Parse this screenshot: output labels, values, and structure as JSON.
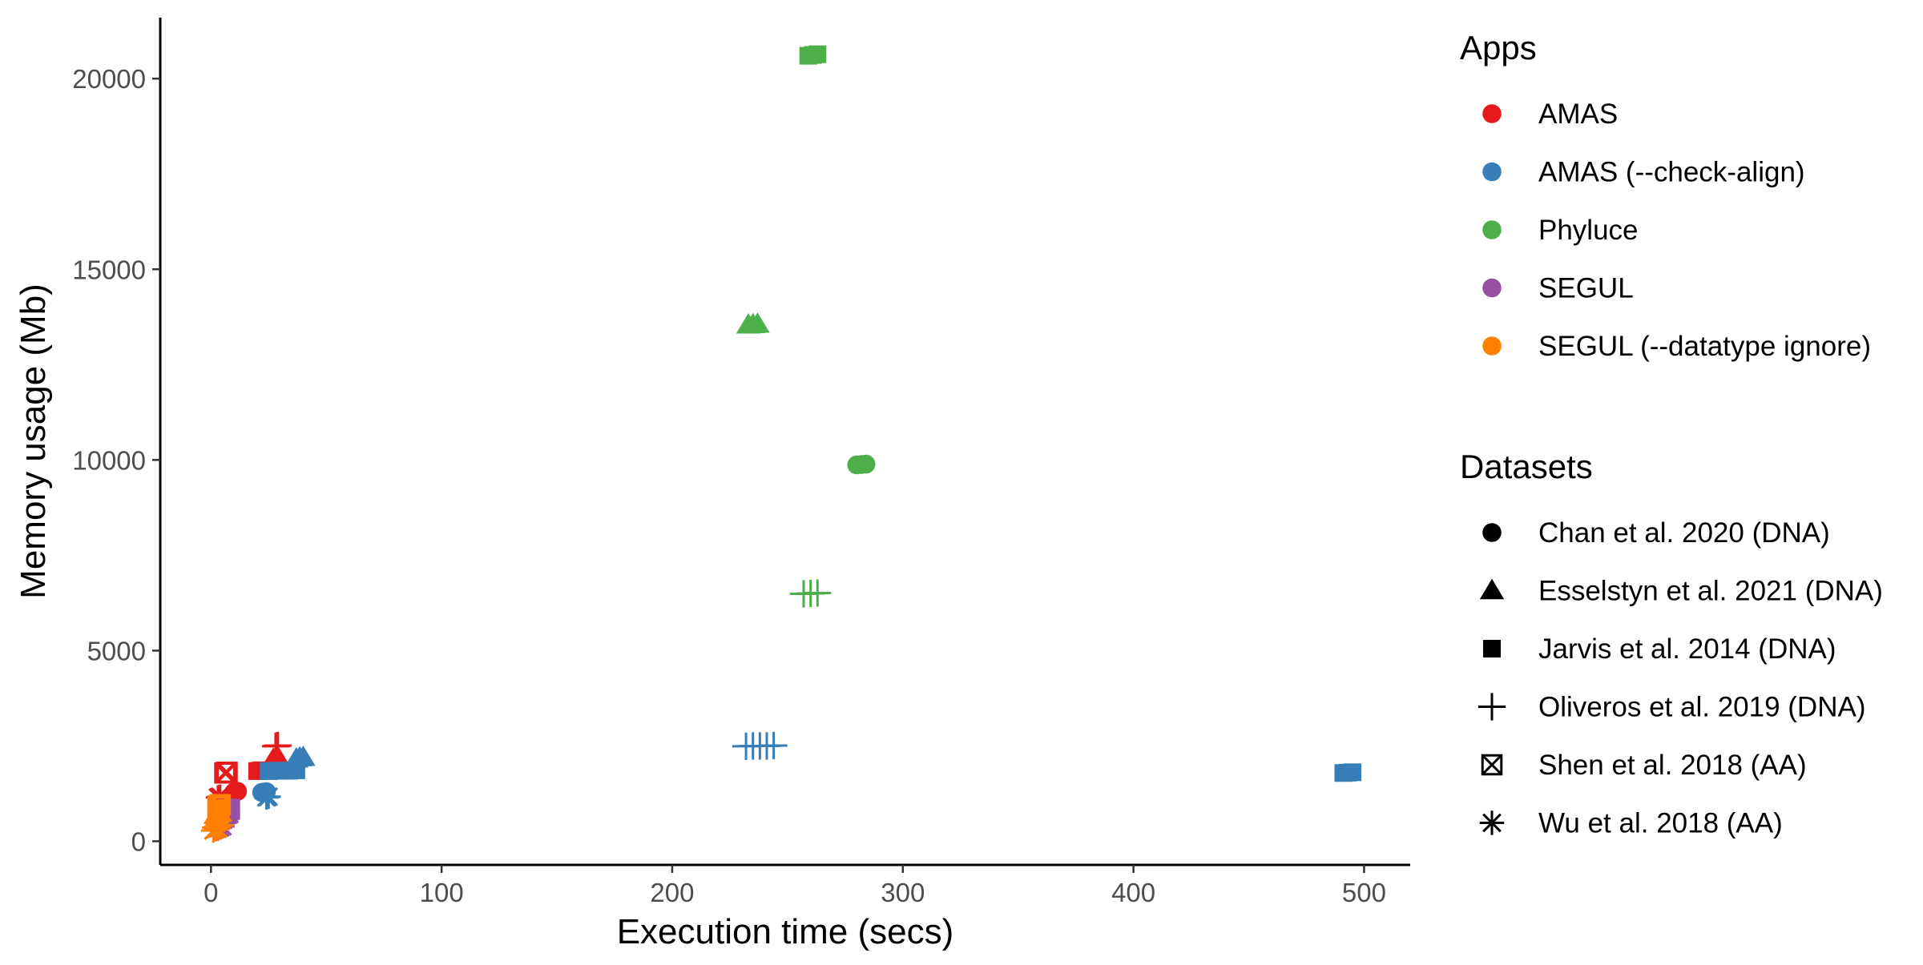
{
  "chart_data": {
    "type": "scatter",
    "xlabel": "Execution time (secs)",
    "ylabel": "Memory usage (Mb)",
    "xlim": [
      -22,
      520
    ],
    "ylim": [
      -620,
      21600
    ],
    "xticks": [
      0,
      100,
      200,
      300,
      400,
      500
    ],
    "yticks": [
      0,
      5000,
      10000,
      15000,
      20000
    ],
    "grid": false,
    "legend_position": "right",
    "apps": [
      {
        "name": "AMAS",
        "color": "#e41a1c"
      },
      {
        "name": "AMAS (--check-align)",
        "color": "#377eb8"
      },
      {
        "name": "Phyluce",
        "color": "#4daf4a"
      },
      {
        "name": "SEGUL",
        "color": "#984ea3"
      },
      {
        "name": "SEGUL (--datatype ignore)",
        "color": "#ff7f00"
      }
    ],
    "datasets": [
      {
        "name": "Chan et al. 2020 (DNA)",
        "shape": "circle"
      },
      {
        "name": "Esselstyn et al. 2021 (DNA)",
        "shape": "triangle"
      },
      {
        "name": "Jarvis et al. 2014 (DNA)",
        "shape": "square"
      },
      {
        "name": "Oliveros et al. 2019 (DNA)",
        "shape": "plus"
      },
      {
        "name": "Shen et al. 2018 (AA)",
        "shape": "boxed-x"
      },
      {
        "name": "Wu et al. 2018 (AA)",
        "shape": "asterisk"
      }
    ],
    "series": [
      {
        "app": 0,
        "dataset": 0,
        "x": [
          10,
          11,
          11.5
        ],
        "y": [
          1290,
          1300,
          1310
        ]
      },
      {
        "app": 0,
        "dataset": 1,
        "x": [
          27,
          28,
          29
        ],
        "y": [
          2150,
          2180,
          2200
        ]
      },
      {
        "app": 0,
        "dataset": 2,
        "x": [
          20,
          21,
          22
        ],
        "y": [
          1840,
          1850,
          1860
        ]
      },
      {
        "app": 0,
        "dataset": 3,
        "x": [
          28,
          28.5,
          29
        ],
        "y": [
          2490,
          2500,
          2510
        ]
      },
      {
        "app": 0,
        "dataset": 4,
        "x": [
          6,
          6.5,
          7
        ],
        "y": [
          1790,
          1800,
          1810
        ]
      },
      {
        "app": 0,
        "dataset": 5,
        "x": [
          3,
          3.5,
          4
        ],
        "y": [
          1150,
          1160,
          1170
        ]
      },
      {
        "app": 1,
        "dataset": 0,
        "x": [
          22,
          23,
          24
        ],
        "y": [
          1280,
          1290,
          1300
        ]
      },
      {
        "app": 1,
        "dataset": 1,
        "x": [
          37,
          38.5,
          40
        ],
        "y": [
          2160,
          2190,
          2200
        ]
      },
      {
        "app": 1,
        "dataset": 2,
        "x": [
          25,
          28,
          31,
          34,
          37
        ],
        "y": [
          1840,
          1850,
          1850,
          1850,
          1860
        ]
      },
      {
        "app": 1,
        "dataset": 3,
        "x": [
          232,
          235,
          238,
          241,
          244
        ],
        "y": [
          2490,
          2500,
          2500,
          2500,
          2510
        ]
      },
      {
        "app": 1,
        "dataset": 5,
        "x": [
          24,
          24.5,
          25
        ],
        "y": [
          1150,
          1160,
          1170
        ]
      },
      {
        "app": 1,
        "dataset": 2,
        "x": [
          491,
          493,
          495
        ],
        "y": [
          1790,
          1800,
          1810
        ]
      },
      {
        "app": 2,
        "dataset": 0,
        "x": [
          280,
          282,
          284
        ],
        "y": [
          9870,
          9880,
          9890
        ]
      },
      {
        "app": 2,
        "dataset": 1,
        "x": [
          233,
          235,
          237
        ],
        "y": [
          13540,
          13550,
          13560
        ]
      },
      {
        "app": 2,
        "dataset": 2,
        "x": [
          259,
          261,
          263
        ],
        "y": [
          20600,
          20620,
          20640
        ]
      },
      {
        "app": 2,
        "dataset": 3,
        "x": [
          257,
          260,
          263
        ],
        "y": [
          6490,
          6500,
          6510
        ]
      },
      {
        "app": 3,
        "dataset": 0,
        "x": [
          4,
          5,
          6
        ],
        "y": [
          480,
          520,
          560
        ]
      },
      {
        "app": 3,
        "dataset": 1,
        "x": [
          4,
          5,
          6
        ],
        "y": [
          620,
          650,
          680
        ]
      },
      {
        "app": 3,
        "dataset": 2,
        "x": [
          5,
          6,
          7
        ],
        "y": [
          680,
          720,
          760
        ]
      },
      {
        "app": 3,
        "dataset": 3,
        "x": [
          4,
          5,
          6
        ],
        "y": [
          450,
          480,
          510
        ]
      },
      {
        "app": 3,
        "dataset": 4,
        "x": [
          6,
          7,
          8
        ],
        "y": [
          780,
          810,
          840
        ]
      },
      {
        "app": 3,
        "dataset": 5,
        "x": [
          3,
          4,
          5
        ],
        "y": [
          330,
          360,
          390
        ]
      },
      {
        "app": 4,
        "dataset": 0,
        "x": [
          2,
          3,
          4
        ],
        "y": [
          520,
          560,
          600
        ]
      },
      {
        "app": 4,
        "dataset": 1,
        "x": [
          2,
          3,
          4
        ],
        "y": [
          680,
          710,
          740
        ]
      },
      {
        "app": 4,
        "dataset": 2,
        "x": [
          2.5,
          3,
          3.5
        ],
        "y": [
          810,
          840,
          870
        ]
      },
      {
        "app": 4,
        "dataset": 3,
        "x": [
          2,
          3,
          4
        ],
        "y": [
          360,
          390,
          420
        ]
      },
      {
        "app": 4,
        "dataset": 4,
        "x": [
          3,
          3.5,
          4
        ],
        "y": [
          900,
          930,
          960
        ]
      },
      {
        "app": 4,
        "dataset": 5,
        "x": [
          1,
          2,
          3
        ],
        "y": [
          280,
          310,
          340
        ]
      }
    ]
  },
  "legend": {
    "apps_title": "Apps",
    "datasets_title": "Datasets"
  }
}
